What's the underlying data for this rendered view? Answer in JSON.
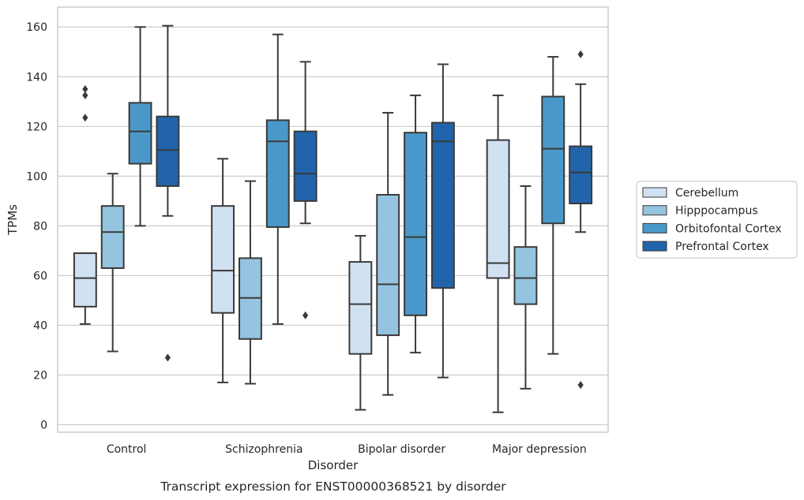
{
  "chart_data": {
    "type": "box",
    "title": "",
    "caption": "Transcript expression for ENST00000368521 by disorder",
    "xlabel": "Disorder",
    "ylabel": "TPMs",
    "ylim": [
      -3,
      168
    ],
    "yticks": [
      0,
      20,
      40,
      60,
      80,
      100,
      120,
      140,
      160
    ],
    "grid": true,
    "legend_position": "right",
    "categories": [
      "Control",
      "Schizophrenia",
      "Bipolar disorder",
      "Major depression"
    ],
    "series": [
      {
        "name": "Cerebellum",
        "color": "#d0e1f2",
        "boxes": [
          {
            "whisker_low": 40.5,
            "q1": 47.5,
            "median": 59,
            "q3": 69,
            "whisker_high": 69,
            "outliers": [
              135,
              132.5,
              123.5
            ]
          },
          {
            "whisker_low": 17,
            "q1": 45,
            "median": 62,
            "q3": 88,
            "whisker_high": 107,
            "outliers": []
          },
          {
            "whisker_low": 6,
            "q1": 28.5,
            "median": 48.5,
            "q3": 65.5,
            "whisker_high": 76,
            "outliers": []
          },
          {
            "whisker_low": 5,
            "q1": 59,
            "median": 65,
            "q3": 114.5,
            "whisker_high": 132.5,
            "outliers": []
          }
        ]
      },
      {
        "name": "Hipppocampus",
        "color": "#94c4df",
        "boxes": [
          {
            "whisker_low": 29.5,
            "q1": 63,
            "median": 77.5,
            "q3": 88,
            "whisker_high": 101,
            "outliers": []
          },
          {
            "whisker_low": 16.5,
            "q1": 34.5,
            "median": 51,
            "q3": 67,
            "whisker_high": 98,
            "outliers": []
          },
          {
            "whisker_low": 12,
            "q1": 36,
            "median": 56.5,
            "q3": 92.5,
            "whisker_high": 125.5,
            "outliers": []
          },
          {
            "whisker_low": 14.5,
            "q1": 48.5,
            "median": 59,
            "q3": 71.5,
            "whisker_high": 96,
            "outliers": []
          }
        ]
      },
      {
        "name": "Orbitofontal Cortex",
        "color": "#4a98c9",
        "boxes": [
          {
            "whisker_low": 80,
            "q1": 105,
            "median": 118,
            "q3": 129.5,
            "whisker_high": 160,
            "outliers": []
          },
          {
            "whisker_low": 40.5,
            "q1": 79.5,
            "median": 114,
            "q3": 122.5,
            "whisker_high": 157,
            "outliers": []
          },
          {
            "whisker_low": 29,
            "q1": 44,
            "median": 75.5,
            "q3": 117.5,
            "whisker_high": 132.5,
            "outliers": []
          },
          {
            "whisker_low": 28.5,
            "q1": 81,
            "median": 111,
            "q3": 132,
            "whisker_high": 148,
            "outliers": []
          }
        ]
      },
      {
        "name": "Prefrontal Cortex",
        "color": "#2164ab",
        "boxes": [
          {
            "whisker_low": 84,
            "q1": 96,
            "median": 110.5,
            "q3": 124,
            "whisker_high": 160.5,
            "outliers": [
              27
            ]
          },
          {
            "whisker_low": 81,
            "q1": 90,
            "median": 101,
            "q3": 118,
            "whisker_high": 146,
            "outliers": [
              44
            ]
          },
          {
            "whisker_low": 19,
            "q1": 55,
            "median": 114,
            "q3": 121.5,
            "whisker_high": 145,
            "outliers": []
          },
          {
            "whisker_low": 77.5,
            "q1": 89,
            "median": 101.5,
            "q3": 112,
            "whisker_high": 137,
            "outliers": [
              149,
              16
            ]
          }
        ]
      }
    ]
  }
}
